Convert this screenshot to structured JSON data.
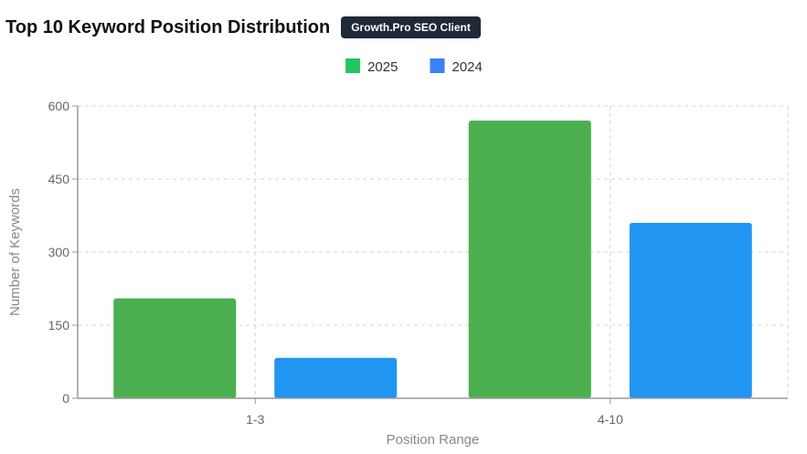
{
  "header": {
    "title": "Top 10 Keyword Position Distribution",
    "badge": "Growth.Pro SEO Client"
  },
  "chart_data": {
    "type": "bar",
    "categories": [
      "1-3",
      "4-10"
    ],
    "series": [
      {
        "name": "2025",
        "values": [
          205,
          570
        ],
        "color": "#4caf50",
        "legend_color": "#22c55e"
      },
      {
        "name": "2024",
        "values": [
          83,
          360
        ],
        "color": "#2196f3",
        "legend_color": "#3b82f6"
      }
    ],
    "xlabel": "Position Range",
    "ylabel": "Number of Keywords",
    "ylim": [
      0,
      600
    ],
    "yticks": [
      0,
      150,
      300,
      450,
      600
    ],
    "grid": true,
    "legend_position": "top-center"
  }
}
